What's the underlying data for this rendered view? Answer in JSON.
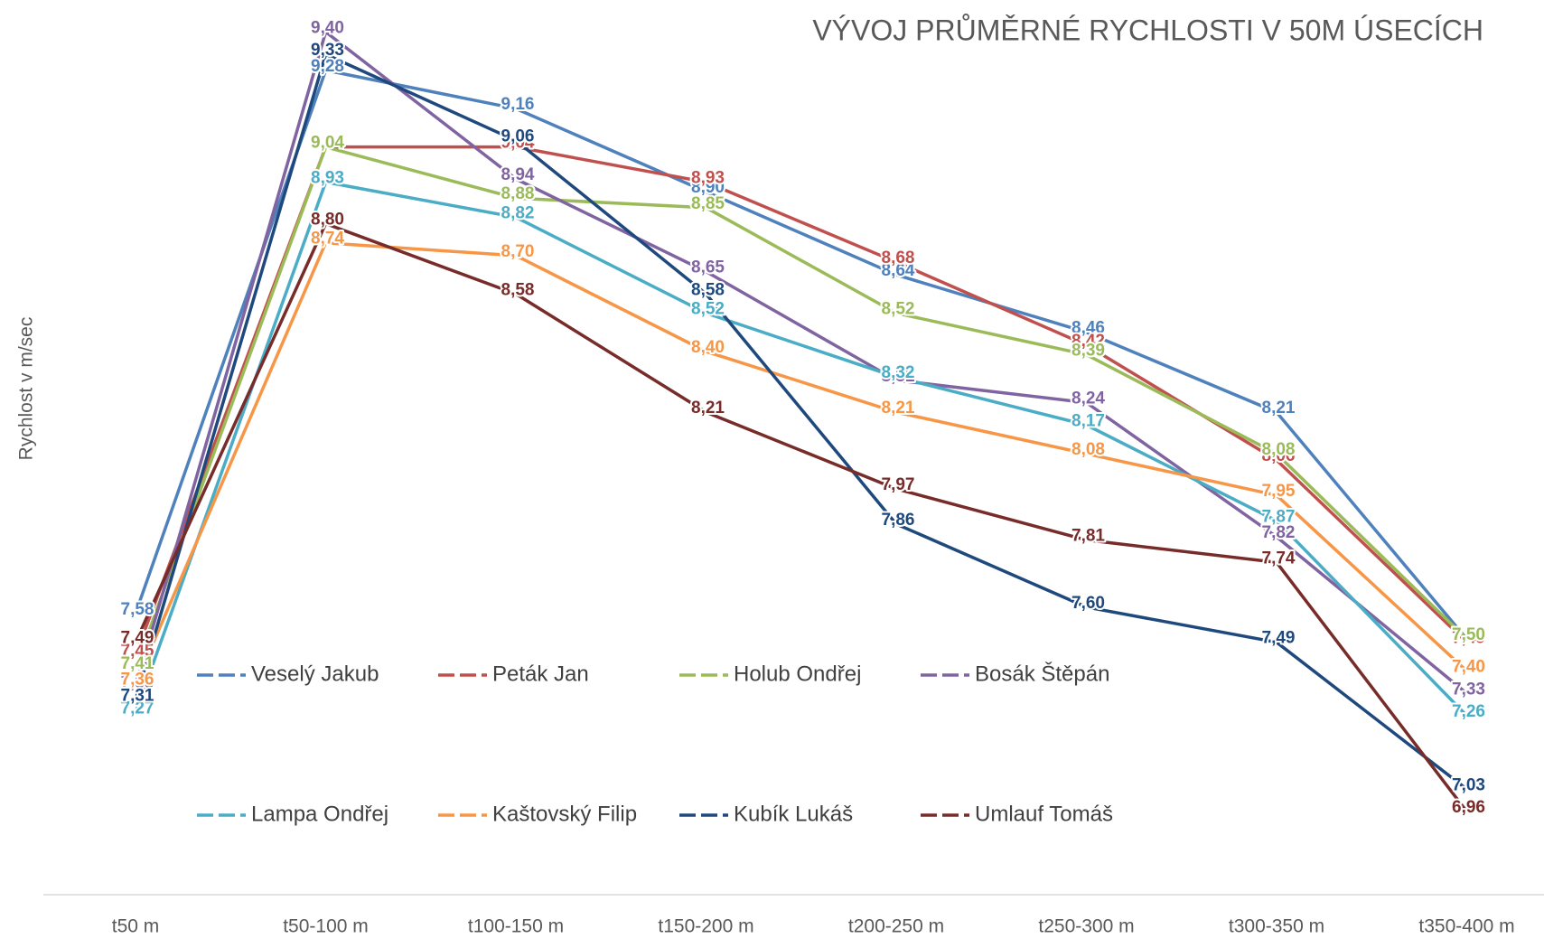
{
  "chart_data": {
    "type": "line",
    "title": "VÝVOJ PRŮMĚRNÉ RYCHLOSTI V 50M ÚSECÍCH",
    "y_label": "Rychlost v m/sec",
    "categories": [
      "t50 m",
      "t50-100 m",
      "t100-150 m",
      "t150-200 m",
      "t200-250 m",
      "t250-300 m",
      "t300-350 m",
      "t350-400 m"
    ],
    "ylim": [
      6.7,
      9.5
    ],
    "series": [
      {
        "name": "Veselý Jakub",
        "color": "#4f81bd",
        "values": [
          7.58,
          9.28,
          9.16,
          8.9,
          8.64,
          8.46,
          8.21,
          7.5
        ],
        "value_labels": [
          "7,58",
          "9,28",
          "9,16",
          "8,90",
          "8,64",
          "8,46",
          "8,21",
          "7,50"
        ]
      },
      {
        "name": "Peták Jan",
        "color": "#c0504d",
        "values": [
          7.45,
          9.04,
          9.04,
          8.93,
          8.68,
          8.42,
          8.06,
          7.49
        ],
        "value_labels": [
          "7,45",
          "9,04",
          "9,04",
          "8,93",
          "8,68",
          "8,42",
          "8,06",
          "7,49"
        ]
      },
      {
        "name": "Holub Ondřej",
        "color": "#9bbb59",
        "values": [
          7.41,
          9.04,
          8.88,
          8.85,
          8.52,
          8.39,
          8.08,
          7.5
        ],
        "value_labels": [
          "7,41",
          "9,04",
          "8,88",
          "8,85",
          "8,52",
          "8,39",
          "8,08",
          "7,50"
        ]
      },
      {
        "name": "Bosák Štěpán",
        "color": "#8064a2",
        "values": [
          7.35,
          9.4,
          8.94,
          8.65,
          8.31,
          8.24,
          7.82,
          7.33
        ],
        "value_labels": [
          "7,35",
          "9,40",
          "8,94",
          "8,65",
          "8,31",
          "8,24",
          "7,82",
          "7,33"
        ]
      },
      {
        "name": "Lampa Ondřej",
        "color": "#4bacc6",
        "values": [
          7.27,
          8.93,
          8.82,
          8.52,
          8.32,
          8.17,
          7.87,
          7.26
        ],
        "value_labels": [
          "7,27",
          "8,93",
          "8,82",
          "8,52",
          "8,32",
          "8,17",
          "7,87",
          "7,26"
        ]
      },
      {
        "name": "Kaštovský Filip",
        "color": "#f79646",
        "values": [
          7.36,
          8.74,
          8.7,
          8.4,
          8.21,
          8.08,
          7.95,
          7.4
        ],
        "value_labels": [
          "7,36",
          "8,74",
          "8,70",
          "8,40",
          "8,21",
          "8,08",
          "7,95",
          "7,40"
        ]
      },
      {
        "name": "Kubík Lukáš",
        "color": "#1f497d",
        "values": [
          7.31,
          9.33,
          9.06,
          8.58,
          7.86,
          7.6,
          7.49,
          7.03
        ],
        "value_labels": [
          "7,31",
          "9,33",
          "9,06",
          "8,58",
          "7,86",
          "7,60",
          "7,49",
          "7,03"
        ]
      },
      {
        "name": "Umlauf Tomáš",
        "color": "#772c2a",
        "values": [
          7.49,
          8.8,
          8.58,
          8.21,
          7.97,
          7.81,
          7.74,
          6.96
        ],
        "value_labels": [
          "7,49",
          "8,80",
          "8,58",
          "8,21",
          "7,97",
          "7,81",
          "7,74",
          "6,96"
        ]
      }
    ]
  }
}
